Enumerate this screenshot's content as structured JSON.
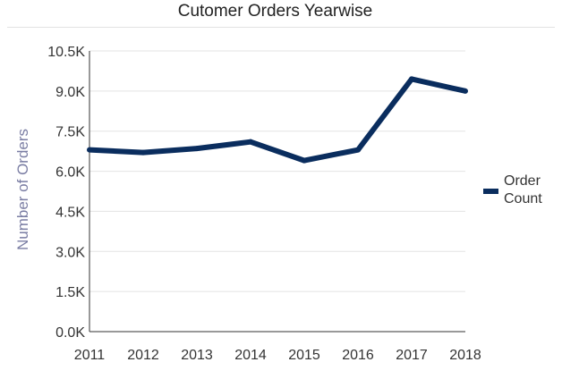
{
  "chart_data": {
    "type": "line",
    "title": "Cutomer Orders Yearwise",
    "xlabel": "",
    "ylabel": "Number of Orders",
    "categories": [
      "2011",
      "2012",
      "2013",
      "2014",
      "2015",
      "2016",
      "2017",
      "2018"
    ],
    "series": [
      {
        "name": "Order Count",
        "name_lines": [
          "Order",
          "Count"
        ],
        "color": "#0a2d5e",
        "values": [
          6800,
          6700,
          6850,
          7100,
          6400,
          6800,
          9450,
          9000
        ]
      }
    ],
    "ylim": [
      0,
      10500
    ],
    "yticks": [
      {
        "value": 0,
        "label": "0.0K"
      },
      {
        "value": 1500,
        "label": "1.5K"
      },
      {
        "value": 3000,
        "label": "3.0K"
      },
      {
        "value": 4500,
        "label": "4.5K"
      },
      {
        "value": 6000,
        "label": "6.0K"
      },
      {
        "value": 7500,
        "label": "7.5K"
      },
      {
        "value": 9000,
        "label": "9.0K"
      },
      {
        "value": 10500,
        "label": "10.5K"
      }
    ],
    "grid": true,
    "legend_position": "right"
  }
}
